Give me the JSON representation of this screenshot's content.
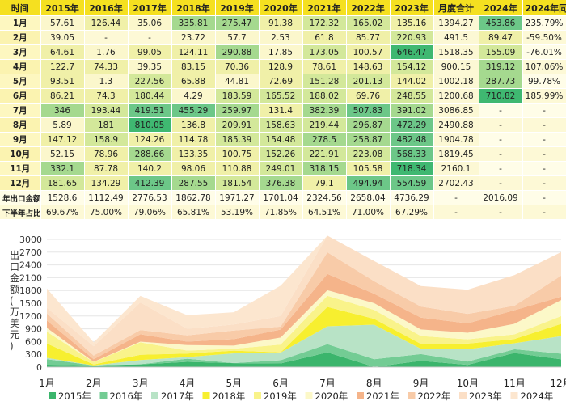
{
  "table": {
    "headers": [
      "时间",
      "2015年",
      "2016年",
      "2017年",
      "2018年",
      "2019年",
      "2020年",
      "2021年",
      "2022年",
      "2023年",
      "月度合计",
      "2024年",
      "2024年同比"
    ],
    "rows": [
      [
        "1月",
        "57.61",
        "126.44",
        "35.06",
        "335.81",
        "275.47",
        "91.38",
        "172.32",
        "165.02",
        "135.16",
        "1394.27",
        "453.86",
        "235.79%"
      ],
      [
        "2月",
        "39.05",
        "-",
        "-",
        "23.72",
        "57.7",
        "2.53",
        "61.8",
        "85.77",
        "220.93",
        "491.5",
        "89.47",
        "-59.50%"
      ],
      [
        "3月",
        "64.61",
        "1.76",
        "99.05",
        "124.11",
        "290.88",
        "17.85",
        "173.05",
        "100.57",
        "646.47",
        "1518.35",
        "155.09",
        "-76.01%"
      ],
      [
        "4月",
        "122.7",
        "74.33",
        "39.35",
        "83.15",
        "70.36",
        "128.9",
        "78.61",
        "148.63",
        "154.12",
        "900.15",
        "319.12",
        "107.06%"
      ],
      [
        "5月",
        "93.51",
        "1.3",
        "227.56",
        "65.88",
        "44.81",
        "72.69",
        "151.28",
        "201.13",
        "144.02",
        "1002.18",
        "287.73",
        "99.78%"
      ],
      [
        "6月",
        "86.21",
        "74.3",
        "180.44",
        "4.29",
        "183.59",
        "165.52",
        "188.02",
        "69.76",
        "248.55",
        "1200.68",
        "710.82",
        "185.99%"
      ],
      [
        "7月",
        "346",
        "193.44",
        "419.51",
        "455.29",
        "259.97",
        "131.4",
        "382.39",
        "507.83",
        "391.02",
        "3086.85",
        "-",
        "-"
      ],
      [
        "8月",
        "5.89",
        "181",
        "810.05",
        "136.8",
        "209.91",
        "158.63",
        "219.44",
        "296.87",
        "472.29",
        "2490.88",
        "-",
        "-"
      ],
      [
        "9月",
        "147.12",
        "158.9",
        "124.26",
        "114.78",
        "185.39",
        "154.48",
        "278.5",
        "258.87",
        "482.48",
        "1904.78",
        "-",
        "-"
      ],
      [
        "10月",
        "52.15",
        "78.96",
        "288.66",
        "133.35",
        "100.75",
        "152.26",
        "221.91",
        "223.08",
        "568.33",
        "1819.45",
        "-",
        "-"
      ],
      [
        "11月",
        "332.1",
        "87.78",
        "140.2",
        "98.06",
        "110.88",
        "249.01",
        "318.15",
        "105.58",
        "718.34",
        "2160.1",
        "-",
        "-"
      ],
      [
        "12月",
        "181.65",
        "134.29",
        "412.39",
        "287.55",
        "181.54",
        "376.38",
        "79.1",
        "494.94",
        "554.59",
        "2702.43",
        "-",
        "-"
      ],
      [
        "年出口金额",
        "1528.6",
        "1112.49",
        "2776.53",
        "1862.78",
        "1971.27",
        "1701.04",
        "2324.56",
        "2658.04",
        "4736.29",
        "-",
        "2016.09",
        "-"
      ],
      [
        "下半年占比",
        "69.67%",
        "75.00%",
        "79.06%",
        "65.81%",
        "53.19%",
        "71.85%",
        "64.51%",
        "71.00%",
        "67.29%",
        "-",
        "-",
        "-"
      ]
    ]
  },
  "chart_data": {
    "type": "area",
    "stacked": true,
    "categories": [
      "1月",
      "2月",
      "3月",
      "4月",
      "5月",
      "6月",
      "7月",
      "8月",
      "9月",
      "10月",
      "11月",
      "12月"
    ],
    "ylabel": "出口金额（万美元）",
    "ylim": [
      0,
      3000
    ],
    "yticks": [
      0,
      300,
      600,
      900,
      1200,
      1500,
      1800,
      2100,
      2400,
      2700,
      3000
    ],
    "legend_position": "bottom",
    "series": [
      {
        "name": "2015年",
        "color": "#3bb56c",
        "values": [
          57.61,
          39.05,
          64.61,
          122.7,
          93.51,
          86.21,
          346,
          5.89,
          147.12,
          52.15,
          332.1,
          181.65
        ]
      },
      {
        "name": "2016年",
        "color": "#73cc94",
        "values": [
          126.44,
          0,
          1.76,
          74.33,
          1.3,
          74.3,
          193.44,
          181,
          158.9,
          78.96,
          87.78,
          134.29
        ]
      },
      {
        "name": "2017年",
        "color": "#b8e3c6",
        "values": [
          35.06,
          0,
          99.05,
          39.35,
          227.56,
          180.44,
          419.51,
          810.05,
          124.26,
          288.66,
          140.2,
          412.39
        ]
      },
      {
        "name": "2018年",
        "color": "#f7ef2f",
        "values": [
          335.81,
          23.72,
          124.11,
          83.15,
          65.88,
          4.29,
          455.29,
          136.8,
          114.78,
          133.35,
          98.06,
          287.55
        ]
      },
      {
        "name": "2019年",
        "color": "#f9f38a",
        "values": [
          275.47,
          57.7,
          290.88,
          70.36,
          44.81,
          183.59,
          259.97,
          209.91,
          185.39,
          100.75,
          110.88,
          181.54
        ]
      },
      {
        "name": "2020年",
        "color": "#fcf8c8",
        "values": [
          91.38,
          2.53,
          17.85,
          128.9,
          72.69,
          165.52,
          131.4,
          158.63,
          154.48,
          152.26,
          249.01,
          376.38
        ]
      },
      {
        "name": "2021年",
        "color": "#f5b48a",
        "values": [
          172.32,
          61.8,
          173.05,
          78.61,
          151.28,
          188.02,
          382.39,
          219.44,
          278.5,
          221.91,
          318.15,
          79.1
        ]
      },
      {
        "name": "2022年",
        "color": "#f8cba8",
        "values": [
          165.02,
          85.77,
          100.57,
          148.63,
          201.13,
          69.76,
          507.83,
          296.87,
          258.87,
          223.08,
          105.58,
          494.94
        ]
      },
      {
        "name": "2023年",
        "color": "#fbdfc6",
        "values": [
          135.16,
          220.93,
          646.47,
          154.12,
          144.02,
          248.55,
          391.02,
          472.29,
          482.48,
          568.33,
          718.34,
          554.59
        ]
      },
      {
        "name": "2024年",
        "color": "#fce6cf",
        "values": [
          453.86,
          89.47,
          155.09,
          319.12,
          287.73,
          710.82,
          0,
          0,
          0,
          0,
          0,
          0
        ]
      }
    ]
  }
}
